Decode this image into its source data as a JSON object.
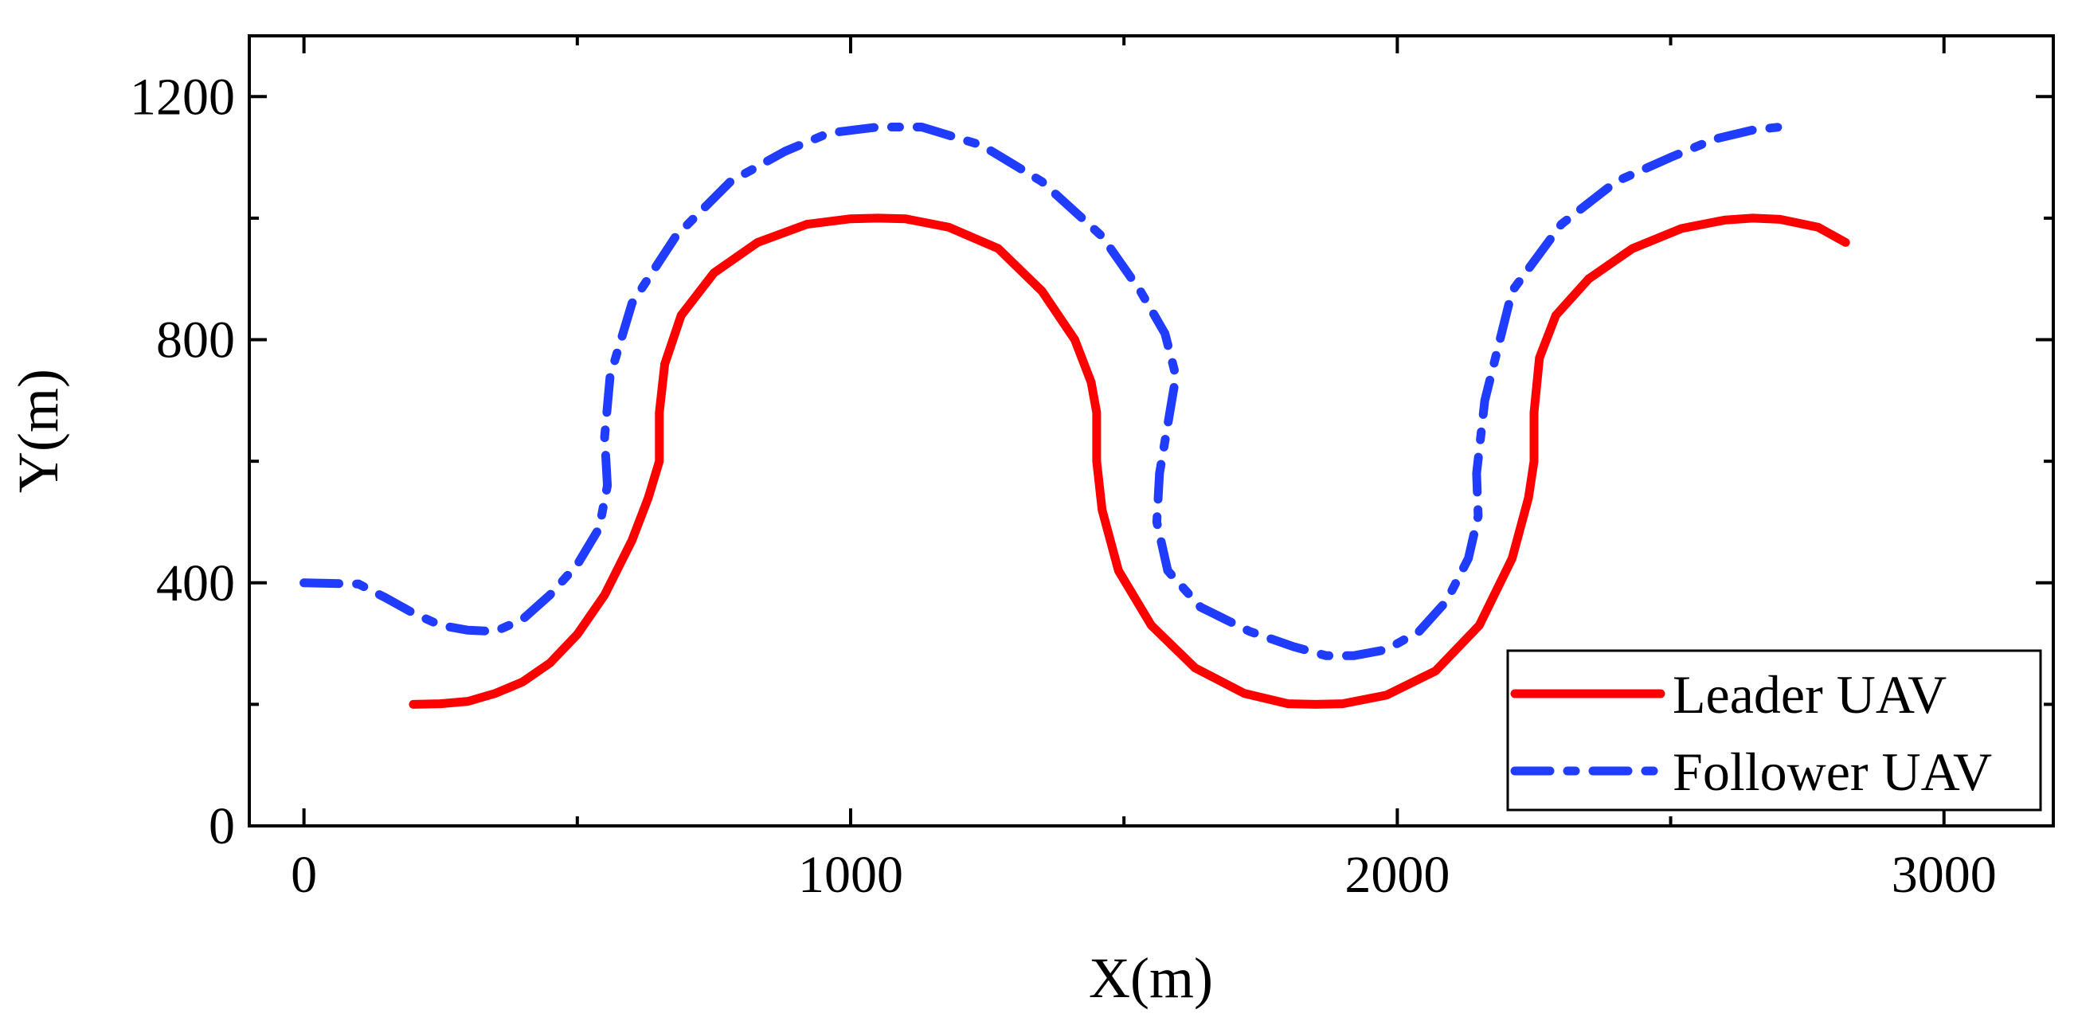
{
  "chart_data": {
    "type": "line",
    "title": "",
    "xlabel": "X(m)",
    "ylabel": "Y(m)",
    "xlim": [
      -100,
      3200
    ],
    "ylim": [
      0,
      1300
    ],
    "xticks": [
      0,
      1000,
      2000,
      3000
    ],
    "yticks": [
      0,
      400,
      800,
      1200
    ],
    "xtick_labels": [
      "0",
      "1000",
      "2000",
      "3000"
    ],
    "ytick_labels": [
      "0",
      "400",
      "800",
      "1200"
    ],
    "grid": false,
    "legend_position": "bottom-right",
    "series": [
      {
        "name": "Leader UAV",
        "color": "#ff0000",
        "style": "solid",
        "x": [
          200,
          250,
          300,
          350,
          400,
          450,
          500,
          550,
          600,
          630,
          650,
          650,
          660,
          690,
          750,
          830,
          920,
          1000,
          1050,
          1100,
          1180,
          1270,
          1350,
          1410,
          1440,
          1450,
          1450,
          1460,
          1490,
          1550,
          1630,
          1720,
          1800,
          1850,
          1900,
          1980,
          2070,
          2150,
          2210,
          2240,
          2250,
          2250,
          2260,
          2290,
          2350,
          2430,
          2520,
          2600,
          2650,
          2700,
          2770,
          2820
        ],
        "y": [
          200,
          201,
          205,
          218,
          237,
          268,
          315,
          380,
          470,
          540,
          600,
          680,
          760,
          840,
          910,
          960,
          990,
          999,
          1000,
          999,
          985,
          950,
          880,
          800,
          730,
          680,
          600,
          520,
          420,
          330,
          260,
          218,
          201,
          200,
          201,
          215,
          255,
          330,
          440,
          540,
          600,
          680,
          770,
          840,
          900,
          950,
          983,
          997,
          1000,
          998,
          985,
          960
        ]
      },
      {
        "name": "Follower UAV",
        "color": "#1f3cff",
        "style": "dashdot",
        "x": [
          0,
          100,
          150,
          200,
          250,
          300,
          350,
          400,
          450,
          500,
          540,
          555,
          550,
          560,
          600,
          680,
          780,
          880,
          960,
          1050,
          1130,
          1240,
          1350,
          1460,
          1530,
          1575,
          1595,
          1580,
          1565,
          1560,
          1580,
          1640,
          1730,
          1810,
          1870,
          1920,
          1980,
          2040,
          2090,
          2130,
          2148,
          2145,
          2160,
          2210,
          2300,
          2400,
          2500,
          2580,
          2650,
          2700
        ],
        "y": [
          400,
          398,
          375,
          350,
          330,
          322,
          320,
          340,
          380,
          430,
          490,
          560,
          640,
          740,
          860,
          970,
          1060,
          1110,
          1140,
          1150,
          1150,
          1120,
          1060,
          970,
          880,
          810,
          740,
          660,
          580,
          500,
          420,
          360,
          320,
          295,
          280,
          280,
          290,
          320,
          370,
          440,
          510,
          580,
          700,
          880,
          990,
          1060,
          1100,
          1130,
          1145,
          1150
        ]
      }
    ]
  }
}
